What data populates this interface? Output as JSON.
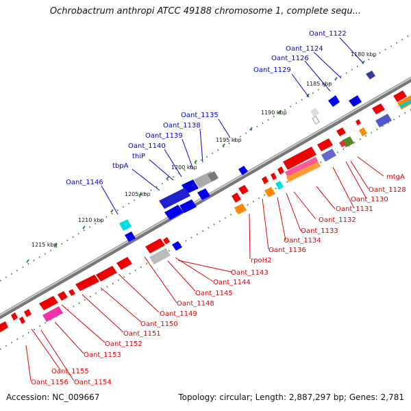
{
  "title": "Ochrobactrum anthropi ATCC 49188 chromosome 1, complete sequ...",
  "accession": "Accession: NC_009667",
  "summary": "Topology: circular; Length: 2,887,297 bp; Genes: 2,781",
  "colors": {
    "forward_label": "#0000cc",
    "reverse_label": "#dd0000",
    "backbone": "#888888",
    "tick": "#2e8b2e"
  },
  "ticks": [
    {
      "label": "1180 kbp"
    },
    {
      "label": "1185 kbp"
    },
    {
      "label": "1190 kbp"
    },
    {
      "label": "1195 kbp"
    },
    {
      "label": "1200 kbp"
    },
    {
      "label": "1205 kbp"
    },
    {
      "label": "1210 kbp"
    },
    {
      "label": "1215 kbp"
    }
  ],
  "forward_labels": [
    {
      "text": "Oant_1122"
    },
    {
      "text": "Oant_1124"
    },
    {
      "text": "Oant_1126"
    },
    {
      "text": "Oant_1129"
    },
    {
      "text": "Oant_1135"
    },
    {
      "text": "Oant_1138"
    },
    {
      "text": "Oant_1139"
    },
    {
      "text": "Oant_1140"
    },
    {
      "text": "thiP"
    },
    {
      "text": "tbpA"
    },
    {
      "text": "Oant_1146"
    }
  ],
  "reverse_labels": [
    {
      "text": "mtgA"
    },
    {
      "text": "Oant_1128"
    },
    {
      "text": "Oant_1130"
    },
    {
      "text": "Oant_1131"
    },
    {
      "text": "Oant_1132"
    },
    {
      "text": "Oant_1133"
    },
    {
      "text": "Oant_1134"
    },
    {
      "text": "Oant_1136"
    },
    {
      "text": "rpoH2"
    },
    {
      "text": "Oant_1143"
    },
    {
      "text": "Oant_1144"
    },
    {
      "text": "Oant_1145"
    },
    {
      "text": "Oant_1148"
    },
    {
      "text": "Oant_1149"
    },
    {
      "text": "Oant_1150"
    },
    {
      "text": "Oant_1151"
    },
    {
      "text": "Oant_1152"
    },
    {
      "text": "Oant_1153"
    },
    {
      "text": "Oant_1155"
    },
    {
      "text": "Oant_1156"
    },
    {
      "text": "Oant_1154"
    }
  ]
}
